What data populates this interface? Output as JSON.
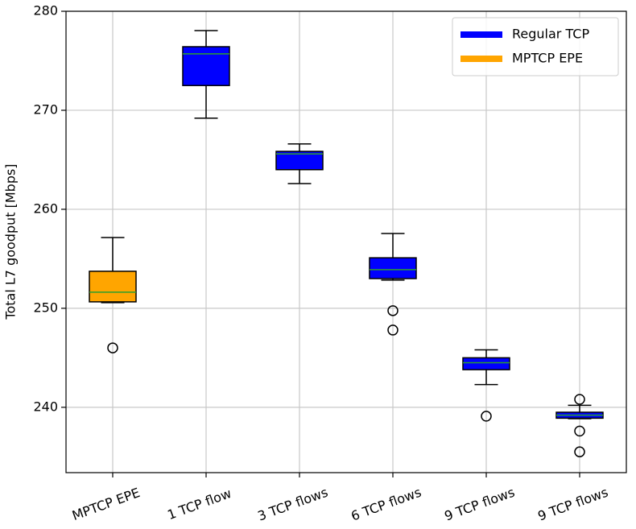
{
  "chart_data": {
    "type": "box",
    "y_label": "Total L7 goodput [Mbps]",
    "categories": [
      "MPTCP EPE",
      "1 TCP flow",
      "3 TCP flows",
      "6 TCP flows",
      "9 TCP flows",
      "9 TCP flows"
    ],
    "boxes": [
      {
        "whisker_low": 250.57,
        "q1": 250.65,
        "median": 251.63,
        "q3": 253.74,
        "whisker_high": 257.15,
        "outliers": [
          246.0
        ]
      },
      {
        "whisker_low": 269.2,
        "q1": 272.5,
        "median": 275.7,
        "q3": 276.42,
        "whisker_high": 278.05,
        "outliers": []
      },
      {
        "whisker_low": 262.6,
        "q1": 264.0,
        "median": 265.6,
        "q3": 265.85,
        "whisker_high": 266.6,
        "outliers": []
      },
      {
        "whisker_low": 252.85,
        "q1": 253.0,
        "median": 253.9,
        "q3": 255.1,
        "whisker_high": 257.55,
        "outliers": [
          249.76,
          247.8
        ]
      },
      {
        "whisker_low": 242.3,
        "q1": 243.8,
        "median": 244.5,
        "q3": 245.0,
        "whisker_high": 245.8,
        "outliers": [
          239.1
        ]
      },
      {
        "whisker_low": 238.85,
        "q1": 238.9,
        "median": 239.2,
        "q3": 239.5,
        "whisker_high": 240.2,
        "outliers": [
          240.8,
          237.6,
          235.5
        ]
      }
    ],
    "box_colors": [
      "#ffa500",
      "#0000ff",
      "#0000ff",
      "#0000ff",
      "#0000ff",
      "#0000ff"
    ],
    "median_color": "#2ca02c",
    "series": [
      {
        "name": "Regular TCP",
        "color": "#0000ff"
      },
      {
        "name": "MPTCP EPE",
        "color": "#ffa500"
      }
    ],
    "ylim": [
      233.4,
      280
    ],
    "yticks": [
      240,
      250,
      260,
      270,
      280
    ],
    "grid": true,
    "legend": "upper right"
  }
}
